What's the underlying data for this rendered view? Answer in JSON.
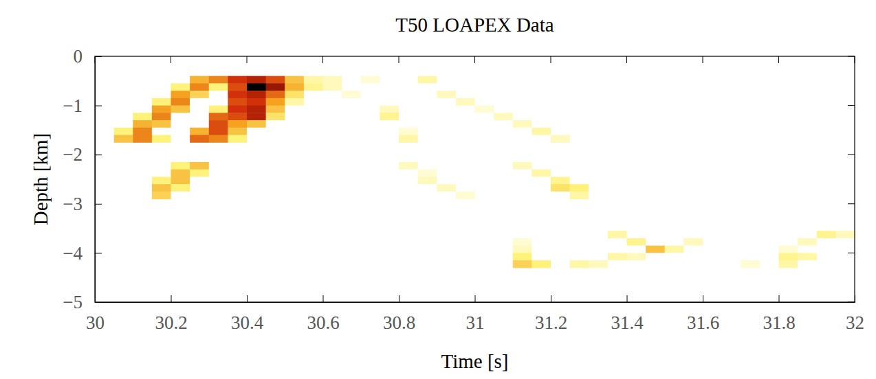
{
  "chart_data": {
    "type": "heatmap",
    "title": "T50 LOAPEX Data",
    "x_label": "Time [s]",
    "y_label": "Depth [km]",
    "xlim": [
      30,
      32
    ],
    "ylim": [
      -5,
      0
    ],
    "xticks": [
      30,
      30.2,
      30.4,
      30.6,
      30.8,
      31,
      31.2,
      31.4,
      31.6,
      31.8,
      32
    ],
    "yticks": [
      {
        "value": -5,
        "label": "−5"
      },
      {
        "value": -4,
        "label": "−4"
      },
      {
        "value": -3,
        "label": "−3"
      },
      {
        "value": -2,
        "label": "−2"
      },
      {
        "value": -1,
        "label": "−1"
      },
      0
    ],
    "x": [
      30.025,
      30.075,
      30.125,
      30.175,
      30.225,
      30.275,
      30.325,
      30.375,
      30.425,
      30.475,
      30.525,
      30.575,
      30.625,
      30.675,
      30.725,
      30.775,
      30.825,
      30.875,
      30.925,
      30.975,
      31.025,
      31.075,
      31.125,
      31.175,
      31.225,
      31.275,
      31.325,
      31.375,
      31.425,
      31.475,
      31.525,
      31.575,
      31.625,
      31.675,
      31.725,
      31.775,
      31.825,
      31.875,
      31.925,
      31.975
    ],
    "y": [
      -0.475,
      -0.625,
      -0.775,
      -0.925,
      -1.075,
      -1.225,
      -1.375,
      -1.525,
      -1.675,
      -2.225,
      -2.375,
      -2.525,
      -2.675,
      -2.825,
      -3.625,
      -3.775,
      -3.925,
      -4.075,
      -4.225
    ],
    "values": [
      [
        0,
        0,
        0,
        0,
        0,
        0.5,
        0.6,
        0.75,
        0.8,
        0.7,
        0.45,
        0.2,
        0.15,
        0,
        0.1,
        0,
        0,
        0.2,
        0,
        0,
        0,
        0,
        0,
        0,
        0,
        0,
        0,
        0,
        0,
        0,
        0,
        0,
        0,
        0,
        0,
        0,
        0,
        0,
        0,
        0
      ],
      [
        0,
        0,
        0,
        0,
        0.3,
        0.6,
        0.3,
        0.7,
        1,
        0.85,
        0.5,
        0.25,
        0.15,
        0,
        0,
        0,
        0,
        0,
        0,
        0,
        0,
        0,
        0,
        0,
        0,
        0,
        0,
        0,
        0,
        0,
        0,
        0,
        0,
        0,
        0,
        0,
        0,
        0,
        0,
        0
      ],
      [
        0,
        0,
        0,
        0,
        0.55,
        0.4,
        0,
        0.75,
        0.8,
        0.65,
        0.35,
        0,
        0,
        0.1,
        0,
        0,
        0,
        0,
        0.15,
        0,
        0,
        0,
        0,
        0,
        0,
        0,
        0,
        0,
        0,
        0,
        0,
        0,
        0,
        0,
        0,
        0,
        0,
        0,
        0,
        0
      ],
      [
        0,
        0,
        0,
        0.3,
        0.6,
        0,
        0,
        0.7,
        0.75,
        0.55,
        0.2,
        0,
        0,
        0,
        0,
        0,
        0,
        0,
        0,
        0.15,
        0,
        0,
        0,
        0,
        0,
        0,
        0,
        0,
        0,
        0,
        0,
        0,
        0,
        0,
        0,
        0,
        0,
        0,
        0,
        0
      ],
      [
        0,
        0,
        0,
        0.55,
        0.45,
        0,
        0.3,
        0.75,
        0.8,
        0.45,
        0,
        0,
        0,
        0,
        0,
        0.15,
        0,
        0,
        0,
        0,
        0.1,
        0,
        0,
        0,
        0,
        0,
        0,
        0,
        0,
        0,
        0,
        0,
        0,
        0,
        0,
        0,
        0,
        0,
        0,
        0
      ],
      [
        0,
        0,
        0.3,
        0.6,
        0,
        0,
        0.65,
        0.7,
        0.8,
        0.35,
        0,
        0,
        0,
        0,
        0,
        0.25,
        0,
        0,
        0,
        0,
        0,
        0.15,
        0,
        0,
        0,
        0,
        0,
        0,
        0,
        0,
        0,
        0,
        0,
        0,
        0,
        0,
        0,
        0,
        0,
        0
      ],
      [
        0,
        0,
        0.5,
        0.45,
        0,
        0,
        0.7,
        0.55,
        0.45,
        0,
        0,
        0,
        0,
        0,
        0,
        0,
        0,
        0,
        0,
        0,
        0,
        0,
        0.15,
        0,
        0,
        0,
        0,
        0,
        0,
        0,
        0,
        0,
        0,
        0,
        0,
        0,
        0,
        0,
        0,
        0
      ],
      [
        0,
        0.3,
        0.6,
        0,
        0,
        0.5,
        0.7,
        0.45,
        0,
        0,
        0,
        0,
        0,
        0,
        0,
        0,
        0.1,
        0,
        0,
        0,
        0,
        0,
        0,
        0.2,
        0,
        0,
        0,
        0,
        0,
        0,
        0,
        0,
        0,
        0,
        0,
        0,
        0,
        0,
        0,
        0
      ],
      [
        0,
        0.45,
        0.6,
        0.3,
        0,
        0.65,
        0.6,
        0.3,
        0,
        0,
        0,
        0,
        0,
        0,
        0,
        0,
        0.2,
        0,
        0,
        0,
        0,
        0,
        0,
        0,
        0.15,
        0,
        0,
        0,
        0,
        0,
        0,
        0,
        0,
        0,
        0,
        0,
        0,
        0,
        0,
        0
      ],
      [
        0,
        0,
        0,
        0,
        0.3,
        0.45,
        0,
        0,
        0,
        0,
        0,
        0,
        0,
        0,
        0,
        0,
        0.15,
        0,
        0,
        0,
        0,
        0,
        0.15,
        0,
        0,
        0,
        0,
        0,
        0,
        0,
        0,
        0,
        0,
        0,
        0,
        0,
        0,
        0,
        0,
        0
      ],
      [
        0,
        0,
        0,
        0,
        0.45,
        0.3,
        0,
        0,
        0,
        0,
        0,
        0,
        0,
        0,
        0,
        0,
        0,
        0.1,
        0,
        0,
        0,
        0,
        0,
        0.2,
        0,
        0,
        0,
        0,
        0,
        0,
        0,
        0,
        0,
        0,
        0,
        0,
        0,
        0,
        0,
        0
      ],
      [
        0,
        0,
        0,
        0.3,
        0.45,
        0,
        0,
        0,
        0,
        0,
        0,
        0,
        0,
        0,
        0,
        0,
        0,
        0.15,
        0,
        0,
        0,
        0,
        0,
        0,
        0.25,
        0,
        0,
        0,
        0,
        0,
        0,
        0,
        0,
        0,
        0,
        0,
        0,
        0,
        0,
        0
      ],
      [
        0,
        0,
        0,
        0.45,
        0.3,
        0,
        0,
        0,
        0,
        0,
        0,
        0,
        0,
        0,
        0,
        0,
        0,
        0,
        0.15,
        0,
        0,
        0,
        0,
        0,
        0.35,
        0.3,
        0,
        0,
        0,
        0,
        0,
        0,
        0,
        0,
        0,
        0,
        0,
        0,
        0,
        0
      ],
      [
        0,
        0,
        0,
        0.4,
        0,
        0,
        0,
        0,
        0,
        0,
        0,
        0,
        0,
        0,
        0,
        0,
        0,
        0,
        0,
        0.1,
        0,
        0,
        0,
        0,
        0,
        0.2,
        0,
        0,
        0,
        0,
        0,
        0,
        0,
        0,
        0,
        0,
        0,
        0,
        0,
        0
      ],
      [
        0,
        0,
        0,
        0,
        0,
        0,
        0,
        0,
        0,
        0,
        0,
        0,
        0,
        0,
        0,
        0,
        0,
        0,
        0,
        0,
        0,
        0,
        0,
        0,
        0,
        0,
        0,
        0.2,
        0,
        0,
        0,
        0,
        0,
        0,
        0,
        0,
        0,
        0,
        0.25,
        0.15
      ],
      [
        0,
        0,
        0,
        0,
        0,
        0,
        0,
        0,
        0,
        0,
        0,
        0,
        0,
        0,
        0,
        0,
        0,
        0,
        0,
        0,
        0,
        0,
        0.1,
        0,
        0,
        0,
        0,
        0,
        0.25,
        0,
        0,
        0.15,
        0,
        0,
        0,
        0,
        0,
        0.15,
        0,
        0
      ],
      [
        0,
        0,
        0,
        0,
        0,
        0,
        0,
        0,
        0,
        0,
        0,
        0,
        0,
        0,
        0,
        0,
        0,
        0,
        0,
        0,
        0,
        0,
        0.15,
        0,
        0,
        0,
        0,
        0,
        0,
        0.45,
        0.2,
        0,
        0,
        0,
        0,
        0,
        0.1,
        0,
        0,
        0
      ],
      [
        0,
        0,
        0,
        0,
        0,
        0,
        0,
        0,
        0,
        0,
        0,
        0,
        0,
        0,
        0,
        0,
        0,
        0,
        0,
        0,
        0,
        0,
        0.3,
        0,
        0,
        0,
        0,
        0.2,
        0.15,
        0,
        0,
        0,
        0,
        0,
        0,
        0,
        0.25,
        0.2,
        0,
        0
      ],
      [
        0,
        0,
        0,
        0,
        0,
        0,
        0,
        0,
        0,
        0,
        0,
        0,
        0,
        0,
        0,
        0,
        0,
        0,
        0,
        0,
        0,
        0,
        0.4,
        0.3,
        0,
        0.2,
        0.15,
        0,
        0,
        0,
        0,
        0,
        0,
        0,
        0.1,
        0,
        0.2,
        0,
        0,
        0
      ]
    ]
  }
}
